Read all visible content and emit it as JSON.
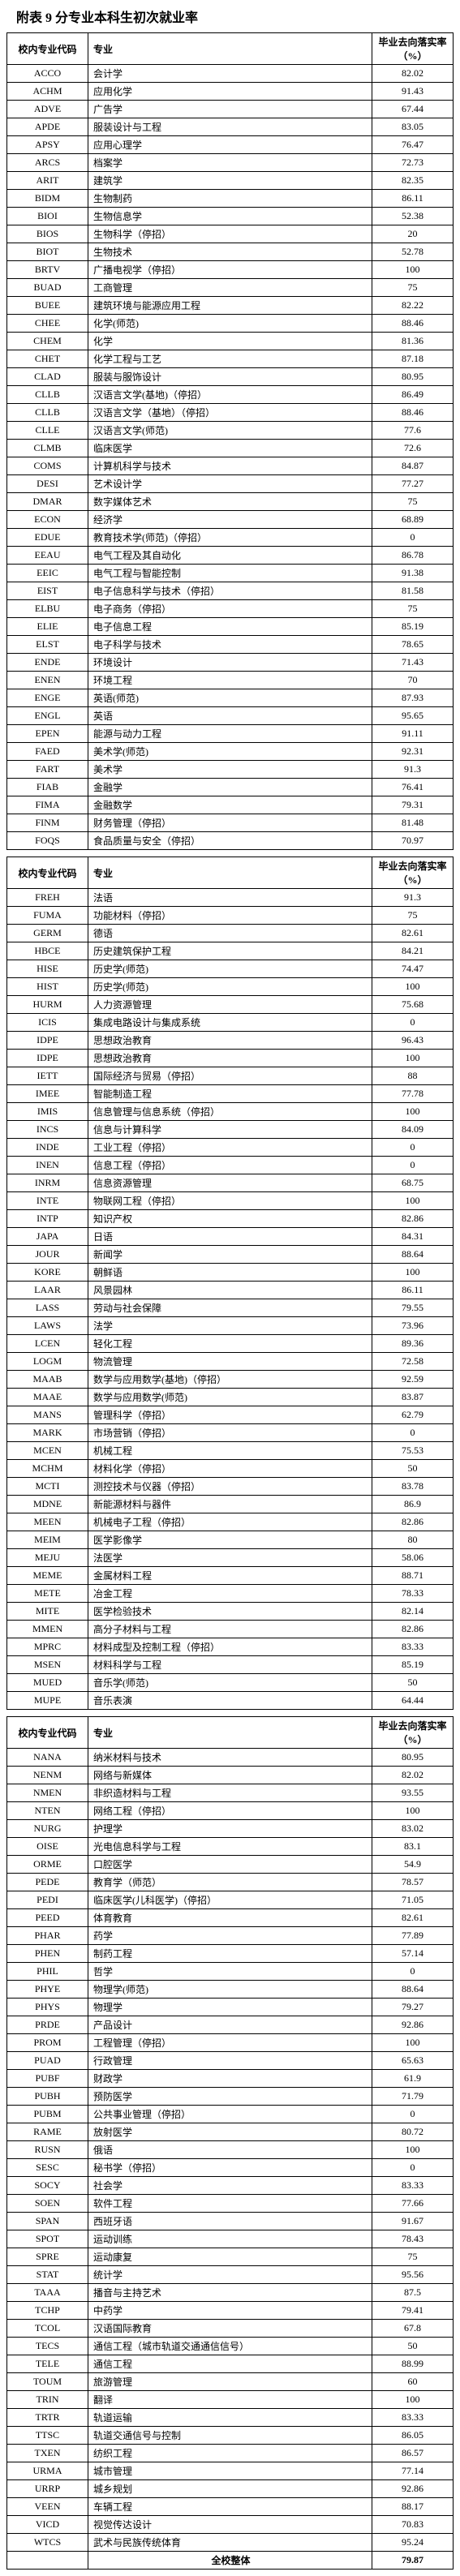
{
  "title": "附表 9  分专业本科生初次就业率",
  "headers": {
    "code": "校内专业代码",
    "name": "专业",
    "rate": "毕业去向落实率（%）"
  },
  "overall_label": "全校整体",
  "overall_rate": "79.87",
  "tables": [
    {
      "rows": [
        {
          "code": "ACCO",
          "name": "会计学",
          "rate": "82.02"
        },
        {
          "code": "ACHM",
          "name": "应用化学",
          "rate": "91.43"
        },
        {
          "code": "ADVE",
          "name": "广告学",
          "rate": "67.44"
        },
        {
          "code": "APDE",
          "name": "服装设计与工程",
          "rate": "83.05"
        },
        {
          "code": "APSY",
          "name": "应用心理学",
          "rate": "76.47"
        },
        {
          "code": "ARCS",
          "name": "档案学",
          "rate": "72.73"
        },
        {
          "code": "ARIT",
          "name": "建筑学",
          "rate": "82.35"
        },
        {
          "code": "BIDM",
          "name": "生物制药",
          "rate": "86.11"
        },
        {
          "code": "BIOI",
          "name": "生物信息学",
          "rate": "52.38"
        },
        {
          "code": "BIOS",
          "name": "生物科学（停招）",
          "rate": "20"
        },
        {
          "code": "BIOT",
          "name": "生物技术",
          "rate": "52.78"
        },
        {
          "code": "BRTV",
          "name": "广播电视学（停招）",
          "rate": "100"
        },
        {
          "code": "BUAD",
          "name": "工商管理",
          "rate": "75"
        },
        {
          "code": "BUEE",
          "name": "建筑环境与能源应用工程",
          "rate": "82.22"
        },
        {
          "code": "CHEE",
          "name": "化学(师范)",
          "rate": "88.46"
        },
        {
          "code": "CHEM",
          "name": "化学",
          "rate": "81.36"
        },
        {
          "code": "CHET",
          "name": "化学工程与工艺",
          "rate": "87.18"
        },
        {
          "code": "CLAD",
          "name": "服装与服饰设计",
          "rate": "80.95"
        },
        {
          "code": "CLLB",
          "name": "汉语言文学(基地)（停招）",
          "rate": "86.49"
        },
        {
          "code": "CLLB",
          "name": "汉语言文学（基地）（停招）",
          "rate": "88.46"
        },
        {
          "code": "CLLE",
          "name": "汉语言文学(师范)",
          "rate": "77.6"
        },
        {
          "code": "CLMB",
          "name": "临床医学",
          "rate": "72.6"
        },
        {
          "code": "COMS",
          "name": "计算机科学与技术",
          "rate": "84.87"
        },
        {
          "code": "DESI",
          "name": "艺术设计学",
          "rate": "77.27"
        },
        {
          "code": "DMAR",
          "name": "数字媒体艺术",
          "rate": "75"
        },
        {
          "code": "ECON",
          "name": "经济学",
          "rate": "68.89"
        },
        {
          "code": "EDUE",
          "name": "教育技术学(师范)（停招）",
          "rate": "0"
        },
        {
          "code": "EEAU",
          "name": "电气工程及其自动化",
          "rate": "86.78"
        },
        {
          "code": "EEIC",
          "name": "电气工程与智能控制",
          "rate": "91.38"
        },
        {
          "code": "EIST",
          "name": "电子信息科学与技术（停招）",
          "rate": "81.58"
        },
        {
          "code": "ELBU",
          "name": "电子商务（停招）",
          "rate": "75"
        },
        {
          "code": "ELIE",
          "name": "电子信息工程",
          "rate": "85.19"
        },
        {
          "code": "ELST",
          "name": "电子科学与技术",
          "rate": "78.65"
        },
        {
          "code": "ENDE",
          "name": "环境设计",
          "rate": "71.43"
        },
        {
          "code": "ENEN",
          "name": "环境工程",
          "rate": "70"
        },
        {
          "code": "ENGE",
          "name": "英语(师范)",
          "rate": "87.93"
        },
        {
          "code": "ENGL",
          "name": "英语",
          "rate": "95.65"
        },
        {
          "code": "EPEN",
          "name": "能源与动力工程",
          "rate": "91.11"
        },
        {
          "code": "FAED",
          "name": "美术学(师范)",
          "rate": "92.31"
        },
        {
          "code": "FART",
          "name": "美术学",
          "rate": "91.3"
        },
        {
          "code": "FIAB",
          "name": "金融学",
          "rate": "76.41"
        },
        {
          "code": "FIMA",
          "name": "金融数学",
          "rate": "79.31"
        },
        {
          "code": "FINM",
          "name": "财务管理（停招）",
          "rate": "81.48"
        },
        {
          "code": "FOQS",
          "name": "食品质量与安全（停招）",
          "rate": "70.97"
        }
      ]
    },
    {
      "rows": [
        {
          "code": "FREH",
          "name": "法语",
          "rate": "91.3"
        },
        {
          "code": "FUMA",
          "name": "功能材料（停招）",
          "rate": "75"
        },
        {
          "code": "GERM",
          "name": "德语",
          "rate": "82.61"
        },
        {
          "code": "HBCE",
          "name": "历史建筑保护工程",
          "rate": "84.21"
        },
        {
          "code": "HISE",
          "name": "历史学(师范)",
          "rate": "74.47"
        },
        {
          "code": "HIST",
          "name": "历史学(师范)",
          "rate": "100"
        },
        {
          "code": "HURM",
          "name": "人力资源管理",
          "rate": "75.68"
        },
        {
          "code": "ICIS",
          "name": "集成电路设计与集成系统",
          "rate": "0"
        },
        {
          "code": "IDPE",
          "name": "思想政治教育",
          "rate": "96.43"
        },
        {
          "code": "IDPE",
          "name": "思想政治教育",
          "rate": "100"
        },
        {
          "code": "IETT",
          "name": "国际经济与贸易（停招）",
          "rate": "88"
        },
        {
          "code": "IMEE",
          "name": "智能制造工程",
          "rate": "77.78"
        },
        {
          "code": "IMIS",
          "name": "信息管理与信息系统（停招）",
          "rate": "100"
        },
        {
          "code": "INCS",
          "name": "信息与计算科学",
          "rate": "84.09"
        },
        {
          "code": "INDE",
          "name": "工业工程（停招）",
          "rate": "0"
        },
        {
          "code": "INEN",
          "name": "信息工程（停招）",
          "rate": "0"
        },
        {
          "code": "INRM",
          "name": "信息资源管理",
          "rate": "68.75"
        },
        {
          "code": "INTE",
          "name": "物联网工程（停招）",
          "rate": "100"
        },
        {
          "code": "INTP",
          "name": "知识产权",
          "rate": "82.86"
        },
        {
          "code": "JAPA",
          "name": "日语",
          "rate": "84.31"
        },
        {
          "code": "JOUR",
          "name": "新闻学",
          "rate": "88.64"
        },
        {
          "code": "KORE",
          "name": "朝鲜语",
          "rate": "100"
        },
        {
          "code": "LAAR",
          "name": "风景园林",
          "rate": "86.11"
        },
        {
          "code": "LASS",
          "name": "劳动与社会保障",
          "rate": "79.55"
        },
        {
          "code": "LAWS",
          "name": "法学",
          "rate": "73.96"
        },
        {
          "code": "LCEN",
          "name": "轻化工程",
          "rate": "89.36"
        },
        {
          "code": "LOGM",
          "name": "物流管理",
          "rate": "72.58"
        },
        {
          "code": "MAAB",
          "name": "数学与应用数学(基地)（停招）",
          "rate": "92.59"
        },
        {
          "code": "MAAE",
          "name": "数学与应用数学(师范)",
          "rate": "83.87"
        },
        {
          "code": "MANS",
          "name": "管理科学（停招）",
          "rate": "62.79"
        },
        {
          "code": "MARK",
          "name": "市场营销（停招）",
          "rate": "0"
        },
        {
          "code": "MCEN",
          "name": "机械工程",
          "rate": "75.53"
        },
        {
          "code": "MCHM",
          "name": "材料化学（停招）",
          "rate": "50"
        },
        {
          "code": "MCTI",
          "name": "测控技术与仪器（停招）",
          "rate": "83.78"
        },
        {
          "code": "MDNE",
          "name": "新能源材料与器件",
          "rate": "86.9"
        },
        {
          "code": "MEEN",
          "name": "机械电子工程（停招）",
          "rate": "82.86"
        },
        {
          "code": "MEIM",
          "name": "医学影像学",
          "rate": "80"
        },
        {
          "code": "MEJU",
          "name": "法医学",
          "rate": "58.06"
        },
        {
          "code": "MEME",
          "name": "金属材料工程",
          "rate": "88.71"
        },
        {
          "code": "METE",
          "name": "冶金工程",
          "rate": "78.33"
        },
        {
          "code": "MITE",
          "name": "医学检验技术",
          "rate": "82.14"
        },
        {
          "code": "MMEN",
          "name": "高分子材料与工程",
          "rate": "82.86"
        },
        {
          "code": "MPRC",
          "name": "材料成型及控制工程（停招）",
          "rate": "83.33"
        },
        {
          "code": "MSEN",
          "name": "材料科学与工程",
          "rate": "85.19"
        },
        {
          "code": "MUED",
          "name": "音乐学(师范)",
          "rate": "50"
        },
        {
          "code": "MUPE",
          "name": "音乐表演",
          "rate": "64.44"
        }
      ]
    },
    {
      "rows": [
        {
          "code": "NANA",
          "name": "纳米材料与技术",
          "rate": "80.95"
        },
        {
          "code": "NENM",
          "name": "网络与新媒体",
          "rate": "82.02"
        },
        {
          "code": "NMEN",
          "name": "非织造材料与工程",
          "rate": "93.55"
        },
        {
          "code": "NTEN",
          "name": "网络工程（停招）",
          "rate": "100"
        },
        {
          "code": "NURG",
          "name": "护理学",
          "rate": "83.02"
        },
        {
          "code": "OISE",
          "name": "光电信息科学与工程",
          "rate": "83.1"
        },
        {
          "code": "ORME",
          "name": "口腔医学",
          "rate": "54.9"
        },
        {
          "code": "PEDE",
          "name": "教育学（师范）",
          "rate": "78.57"
        },
        {
          "code": "PEDI",
          "name": "临床医学(儿科医学)（停招）",
          "rate": "71.05"
        },
        {
          "code": "PEED",
          "name": "体育教育",
          "rate": "82.61"
        },
        {
          "code": "PHAR",
          "name": "药学",
          "rate": "77.89"
        },
        {
          "code": "PHEN",
          "name": "制药工程",
          "rate": "57.14"
        },
        {
          "code": "PHIL",
          "name": "哲学",
          "rate": "0"
        },
        {
          "code": "PHYE",
          "name": "物理学(师范)",
          "rate": "88.64"
        },
        {
          "code": "PHYS",
          "name": "物理学",
          "rate": "79.27"
        },
        {
          "code": "PRDE",
          "name": "产品设计",
          "rate": "92.86"
        },
        {
          "code": "PROM",
          "name": "工程管理（停招）",
          "rate": "100"
        },
        {
          "code": "PUAD",
          "name": "行政管理",
          "rate": "65.63"
        },
        {
          "code": "PUBF",
          "name": "财政学",
          "rate": "61.9"
        },
        {
          "code": "PUBH",
          "name": "预防医学",
          "rate": "71.79"
        },
        {
          "code": "PUBM",
          "name": "公共事业管理（停招）",
          "rate": "0"
        },
        {
          "code": "RAME",
          "name": "放射医学",
          "rate": "80.72"
        },
        {
          "code": "RUSN",
          "name": "俄语",
          "rate": "100"
        },
        {
          "code": "SESC",
          "name": "秘书学（停招）",
          "rate": "0"
        },
        {
          "code": "SOCY",
          "name": "社会学",
          "rate": "83.33"
        },
        {
          "code": "SOEN",
          "name": "软件工程",
          "rate": "77.66"
        },
        {
          "code": "SPAN",
          "name": "西班牙语",
          "rate": "91.67"
        },
        {
          "code": "SPOT",
          "name": "运动训练",
          "rate": "78.43"
        },
        {
          "code": "SPRE",
          "name": "运动康复",
          "rate": "75"
        },
        {
          "code": "STAT",
          "name": "统计学",
          "rate": "95.56"
        },
        {
          "code": "TAAA",
          "name": "播音与主持艺术",
          "rate": "87.5"
        },
        {
          "code": "TCHP",
          "name": "中药学",
          "rate": "79.41"
        },
        {
          "code": "TCOL",
          "name": "汉语国际教育",
          "rate": "67.8"
        },
        {
          "code": "TECS",
          "name": "通信工程（城市轨道交通通信信号）",
          "rate": "50"
        },
        {
          "code": "TELE",
          "name": "通信工程",
          "rate": "88.99"
        },
        {
          "code": "TOUM",
          "name": "旅游管理",
          "rate": "60"
        },
        {
          "code": "TRIN",
          "name": "翻译",
          "rate": "100"
        },
        {
          "code": "TRTR",
          "name": "轨道运输",
          "rate": "83.33"
        },
        {
          "code": "TTSC",
          "name": "轨道交通信号与控制",
          "rate": "86.05"
        },
        {
          "code": "TXEN",
          "name": "纺织工程",
          "rate": "86.57"
        },
        {
          "code": "URMA",
          "name": "城市管理",
          "rate": "77.14"
        },
        {
          "code": "URRP",
          "name": "城乡规划",
          "rate": "92.86"
        },
        {
          "code": "VEEN",
          "name": "车辆工程",
          "rate": "88.17"
        },
        {
          "code": "VICD",
          "name": "视觉传达设计",
          "rate": "70.83"
        },
        {
          "code": "WTCS",
          "name": "武术与民族传统体育",
          "rate": "95.24"
        }
      ]
    }
  ]
}
